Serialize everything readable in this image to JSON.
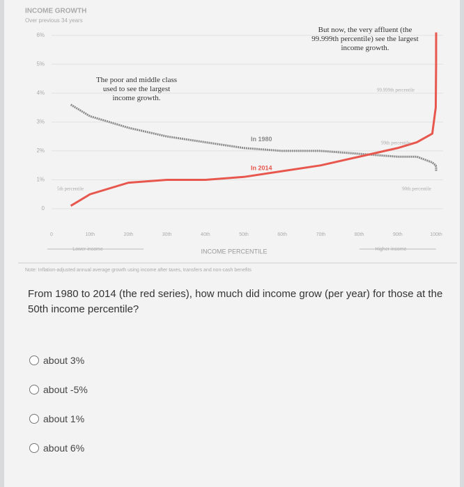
{
  "chart_data": {
    "type": "line",
    "title": "INCOME GROWTH",
    "subtitle": "Over previous 34 years",
    "x_label": "INCOME PERCENTILE",
    "x_left_label": "Lower income",
    "x_right_label": "Higher income",
    "note": "Note: Inflation-adjusted annual average growth using income after taxes, transfers and non-cash benefits",
    "annotations": [
      "The poor and middle class used to see the largest income growth.",
      "But now, the very affluent (the 99.999th percentile) see the largest income growth.",
      "5th percentile",
      "99.999th percentile",
      "99th percentile",
      "90th percentile"
    ],
    "x": [
      5,
      10,
      20,
      30,
      40,
      50,
      60,
      70,
      80,
      90,
      95,
      99,
      99.9,
      99.99,
      99.999
    ],
    "series": [
      {
        "name": "In 1980",
        "color": "#8a8a8a",
        "values": [
          3.6,
          3.2,
          2.8,
          2.5,
          2.3,
          2.1,
          2.0,
          2.0,
          1.9,
          1.8,
          1.8,
          1.6,
          1.5,
          1.4,
          1.3
        ]
      },
      {
        "name": "In 2014",
        "color": "#e8574e",
        "values": [
          0.1,
          0.5,
          0.9,
          1.0,
          1.0,
          1.1,
          1.3,
          1.5,
          1.8,
          2.1,
          2.3,
          2.6,
          3.5,
          5.0,
          6.1
        ]
      }
    ],
    "xlim": [
      0,
      100
    ],
    "xticks": [
      0,
      {
        "value": 10,
        "label": "10th"
      },
      {
        "value": 20,
        "label": "20th"
      },
      {
        "value": 30,
        "label": "30th"
      },
      {
        "value": 40,
        "label": "40th"
      },
      {
        "value": 50,
        "label": "50th"
      },
      {
        "value": 60,
        "label": "60th"
      },
      {
        "value": 70,
        "label": "70th"
      },
      {
        "value": 80,
        "label": "80th"
      },
      {
        "value": 90,
        "label": "90th"
      },
      {
        "value": 100,
        "label": "100th"
      }
    ],
    "ylim": [
      0,
      6.5
    ],
    "yticks": [
      0,
      {
        "value": 1,
        "label": "1%"
      },
      {
        "value": 2,
        "label": "2%"
      },
      {
        "value": 3,
        "label": "3%"
      },
      {
        "value": 4,
        "label": "4%"
      },
      {
        "value": 5,
        "label": "5%"
      },
      {
        "value": 6,
        "label": "6%"
      }
    ],
    "grid": true
  },
  "question": "From 1980 to 2014 (the red series), how much did income grow (per year) for those at the 50th income percentile?",
  "options": [
    "about 3%",
    "about -5%",
    "about 1%",
    "about 6%"
  ]
}
